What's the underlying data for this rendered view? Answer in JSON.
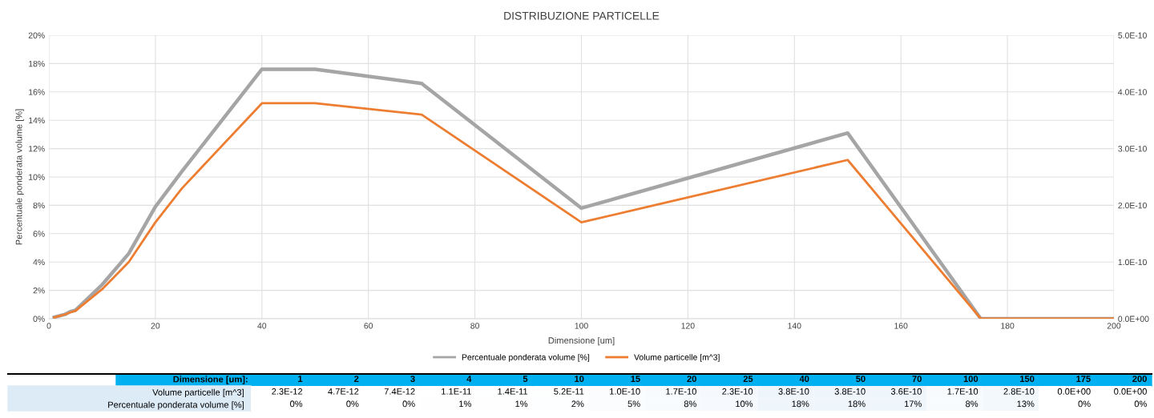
{
  "chart_data": [
    {
      "type": "line",
      "title": "DISTRIBUZIONE PARTICELLE",
      "xlabel": "Dimensione [um]",
      "ylabel": "Percentuale ponderata volume [%]",
      "x": [
        1,
        2,
        3,
        4,
        5,
        10,
        15,
        20,
        25,
        40,
        50,
        70,
        100,
        150,
        175,
        200
      ],
      "series": [
        {
          "name": "Percentuale ponderata volume [%]",
          "color": "#a5a5a5",
          "values": [
            0.1,
            0.2,
            0.3,
            0.5,
            0.6,
            2.4,
            4.6,
            7.9,
            10.4,
            17.6,
            17.6,
            16.6,
            7.8,
            13.1,
            0,
            0
          ]
        },
        {
          "name": "Volume particelle [m^3]",
          "color": "#ed7d31",
          "axis": "y2",
          "values": [
            2.3e-12,
            4.7e-12,
            7.4e-12,
            1.1e-11,
            1.4e-11,
            5.2e-11,
            1e-10,
            1.7e-10,
            2.3e-10,
            3.8e-10,
            3.8e-10,
            3.6e-10,
            1.7e-10,
            2.8e-10,
            0,
            0
          ]
        }
      ],
      "xlim": [
        0,
        200
      ],
      "xticks": [
        0,
        20,
        40,
        60,
        80,
        100,
        120,
        140,
        160,
        180,
        200
      ],
      "ylim": [
        0,
        20
      ],
      "yticks": [
        {
          "value": 0,
          "label": "0%"
        },
        {
          "value": 2,
          "label": "2%"
        },
        {
          "value": 4,
          "label": "4%"
        },
        {
          "value": 6,
          "label": "6%"
        },
        {
          "value": 8,
          "label": "8%"
        },
        {
          "value": 10,
          "label": "10%"
        },
        {
          "value": 12,
          "label": "12%"
        },
        {
          "value": 14,
          "label": "14%"
        },
        {
          "value": 16,
          "label": "16%"
        },
        {
          "value": 18,
          "label": "18%"
        },
        {
          "value": 20,
          "label": "20%"
        }
      ],
      "y2lim": [
        0,
        5e-10
      ],
      "y2ticks": [
        {
          "value": 0,
          "label": "0.0E+00"
        },
        {
          "value": 1e-10,
          "label": "1.0E-10"
        },
        {
          "value": 2e-10,
          "label": "2.0E-10"
        },
        {
          "value": 3e-10,
          "label": "3.0E-10"
        },
        {
          "value": 4e-10,
          "label": "4.0E-10"
        },
        {
          "value": 5e-10,
          "label": "5.0E-10"
        }
      ],
      "grid": true,
      "legend": "bottom",
      "marker": "none",
      "line_style": "solid"
    },
    {
      "type": "heatmap",
      "xlabel": "Dimensione [um]:",
      "categories": [
        "1",
        "2",
        "3",
        "4",
        "5",
        "10",
        "15",
        "20",
        "25",
        "40",
        "50",
        "70",
        "100",
        "150",
        "175",
        "200"
      ],
      "y_categories": [
        "Volume particelle [m^3]",
        "Percentuale ponderata volume [%]"
      ],
      "cells": [
        [
          2.3e-12,
          4.7e-12,
          7.4e-12,
          1.1e-11,
          1.4e-11,
          5.2e-11,
          1e-10,
          1.7e-10,
          2.3e-10,
          3.8e-10,
          3.8e-10,
          3.6e-10,
          1.7e-10,
          2.8e-10,
          0,
          0
        ],
        [
          0,
          0,
          0,
          1,
          1,
          2,
          5,
          8,
          10,
          18,
          18,
          17,
          8,
          13,
          0,
          0
        ]
      ],
      "cell_labels": [
        [
          "2.3E-12",
          "4.7E-12",
          "7.4E-12",
          "1.1E-11",
          "1.4E-11",
          "5.2E-11",
          "1.0E-10",
          "1.7E-10",
          "2.3E-10",
          "3.8E-10",
          "3.8E-10",
          "3.6E-10",
          "1.7E-10",
          "2.8E-10",
          "0.0E+00",
          "0.0E+00"
        ],
        [
          "0%",
          "0%",
          "0%",
          "1%",
          "1%",
          "2%",
          "5%",
          "8%",
          "10%",
          "18%",
          "18%",
          "17%",
          "8%",
          "13%",
          "0%",
          "0%"
        ]
      ]
    }
  ]
}
